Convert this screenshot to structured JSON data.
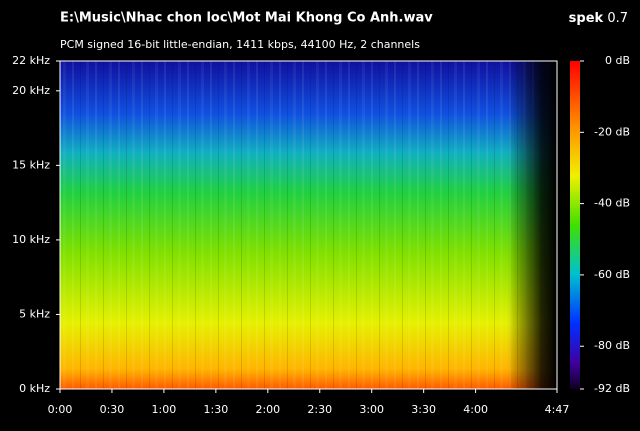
{
  "chart_data": {
    "type": "spectrogram",
    "title": "E:\\Music\\Nhac chon loc\\Mot Mai Khong Co Anh.wav",
    "subtitle": "PCM signed 16-bit little-endian, 1411 kbps, 44100 Hz, 2 channels",
    "app_name": "spek",
    "app_version": "0.7",
    "xlim": [
      0,
      287
    ],
    "xticks": [
      {
        "value": 0,
        "label": "0:00"
      },
      {
        "value": 30,
        "label": "0:30"
      },
      {
        "value": 60,
        "label": "1:00"
      },
      {
        "value": 90,
        "label": "1:30"
      },
      {
        "value": 120,
        "label": "2:00"
      },
      {
        "value": 150,
        "label": "2:30"
      },
      {
        "value": 180,
        "label": "3:00"
      },
      {
        "value": 210,
        "label": "3:30"
      },
      {
        "value": 240,
        "label": "4:00"
      },
      {
        "value": 287,
        "label": "4:47"
      }
    ],
    "ylim": [
      0,
      22
    ],
    "yticks": [
      {
        "value": 0,
        "label": "0 kHz"
      },
      {
        "value": 5,
        "label": "5 kHz"
      },
      {
        "value": 10,
        "label": "10 kHz"
      },
      {
        "value": 15,
        "label": "15 kHz"
      },
      {
        "value": 20,
        "label": "20 kHz"
      },
      {
        "value": 22,
        "label": "22 kHz"
      }
    ],
    "colorbar_lim": [
      -92,
      0
    ],
    "colorbar_ticks": [
      {
        "value": 0,
        "label": "0 dB"
      },
      {
        "value": -20,
        "label": "-20 dB"
      },
      {
        "value": -40,
        "label": "-40 dB"
      },
      {
        "value": -60,
        "label": "-60 dB"
      },
      {
        "value": -80,
        "label": "-80 dB"
      },
      {
        "value": -92,
        "label": "-92 dB"
      }
    ]
  }
}
